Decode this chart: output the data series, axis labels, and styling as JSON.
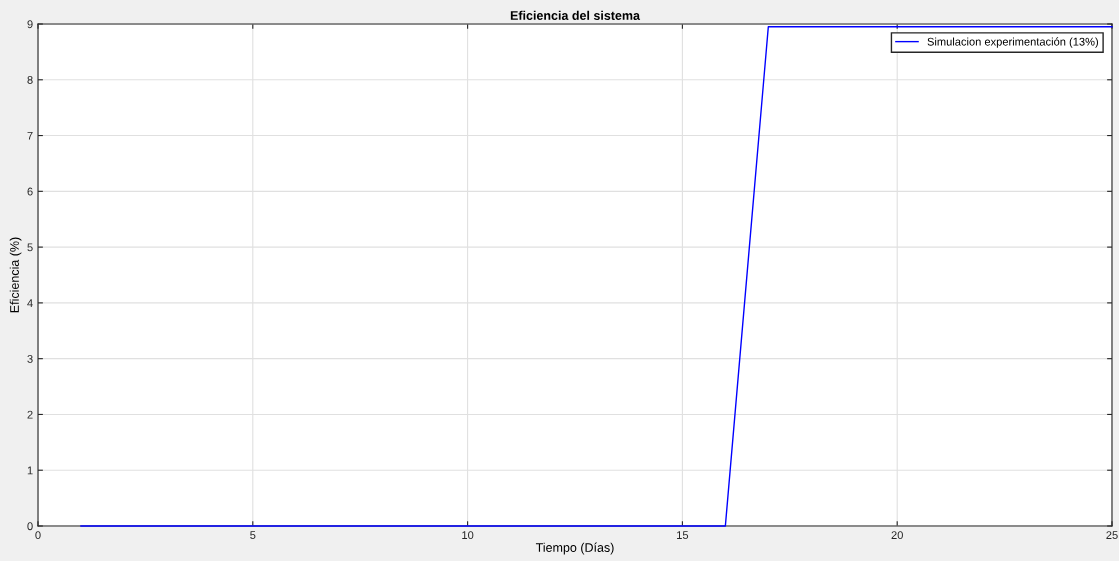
{
  "chart_data": {
    "type": "line",
    "title": "Eficiencia del sistema",
    "xlabel": "Tiempo (Días)",
    "ylabel": "Eficiencia (%)",
    "x": [
      1,
      2,
      3,
      4,
      5,
      6,
      7,
      8,
      9,
      10,
      11,
      12,
      13,
      14,
      15,
      16,
      17,
      18,
      19,
      20,
      21,
      22,
      23,
      24,
      25
    ],
    "series": [
      {
        "name": "Simulacion experimentación (13%)",
        "color": "#0000ff",
        "values": [
          0,
          0,
          0,
          0,
          0,
          0,
          0,
          0,
          0,
          0,
          0,
          0,
          0,
          0,
          0,
          0,
          8.95,
          8.95,
          8.95,
          8.95,
          8.95,
          8.95,
          8.95,
          8.95,
          8.95
        ]
      }
    ],
    "xlim": [
      0,
      25
    ],
    "xticks": [
      0,
      5,
      10,
      15,
      20,
      25
    ],
    "ylim": [
      0,
      9
    ],
    "yticks": [
      0,
      1,
      2,
      3,
      4,
      5,
      6,
      7,
      8,
      9
    ],
    "grid": true,
    "legend": "top right",
    "marker": "none",
    "line_style": "solid"
  }
}
